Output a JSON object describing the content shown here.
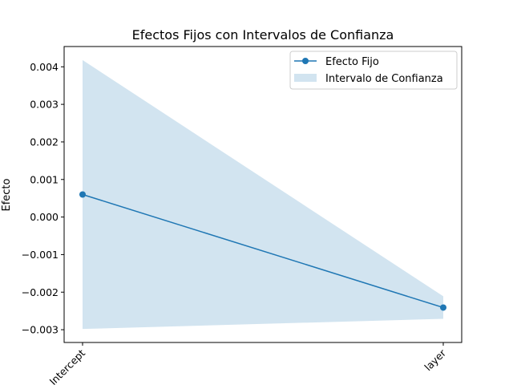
{
  "chart_data": {
    "type": "line",
    "title": "Efectos Fijos con Intervalos de Confianza",
    "xlabel": "",
    "ylabel": "Efecto",
    "categories": [
      "Intercept",
      "layer"
    ],
    "series": [
      {
        "name": "Efecto Fijo",
        "values": [
          0.0006,
          -0.00241
        ],
        "color": "#1f77b4",
        "marker": "circle"
      }
    ],
    "confidence_band": {
      "name": "Intervalo de Confianza",
      "lower": [
        -0.00298,
        -0.00271
      ],
      "upper": [
        0.00418,
        -0.00211
      ],
      "color": "#1f77b4",
      "opacity": 0.2
    },
    "ylim": [
      -0.00334,
      0.00454
    ],
    "yticks": [
      "−0.003",
      "−0.002",
      "−0.001",
      "0.000",
      "0.001",
      "0.002",
      "0.003",
      "0.004"
    ],
    "ytick_values": [
      -0.003,
      -0.002,
      -0.001,
      0.0,
      0.001,
      0.002,
      0.003,
      0.004
    ],
    "xtick_rotation_deg": 45,
    "legend": {
      "placement": "top-right",
      "entries": [
        "Efecto Fijo",
        "Intervalo de Confianza"
      ]
    },
    "grid": false
  }
}
